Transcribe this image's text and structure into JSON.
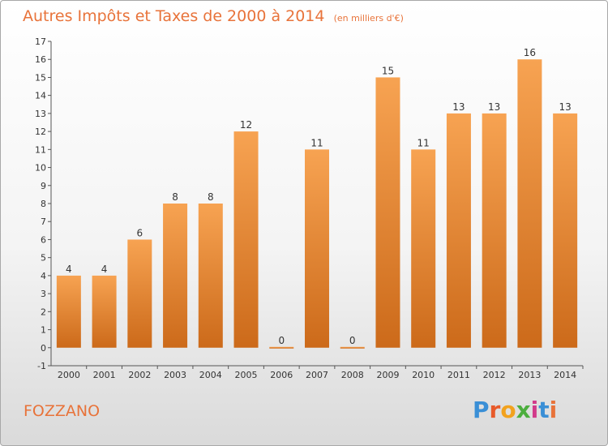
{
  "title": "Autres Impôts et Taxes de 2000 à 2014",
  "subtitle": "(en milliers d'€)",
  "commune": "FOZZANO",
  "brand": {
    "letters": [
      "P",
      "r",
      "o",
      "x",
      "i",
      "t",
      "i"
    ],
    "colors": [
      "#3a8fd6",
      "#e85a2a",
      "#f2a21e",
      "#4cae3e",
      "#d23a8a",
      "#3a8fd6",
      "#e8733a"
    ]
  },
  "chart_data": {
    "type": "bar",
    "title": "Autres Impôts et Taxes de 2000 à 2014",
    "subtitle": "(en milliers d'€)",
    "categories": [
      "2000",
      "2001",
      "2002",
      "2003",
      "2004",
      "2005",
      "2006",
      "2007",
      "2008",
      "2009",
      "2010",
      "2011",
      "2012",
      "2013",
      "2014"
    ],
    "values": [
      4,
      4,
      6,
      8,
      8,
      12,
      0,
      11,
      0,
      15,
      11,
      13,
      13,
      16,
      13
    ],
    "value_labels": [
      "4",
      "4",
      "6",
      "8",
      "8",
      "12",
      "0",
      "11",
      "0",
      "15",
      "11",
      "13",
      "13",
      "16",
      "13"
    ],
    "yticks": [
      "-1",
      "0",
      "1",
      "2",
      "3",
      "4",
      "5",
      "6",
      "7",
      "8",
      "9",
      "10",
      "11",
      "12",
      "13",
      "14",
      "15",
      "16",
      "17"
    ],
    "ylim": [
      -1,
      17
    ],
    "grid": false,
    "bar_color": "#f0923e",
    "bar_color_dark": "#cc6a1a"
  }
}
